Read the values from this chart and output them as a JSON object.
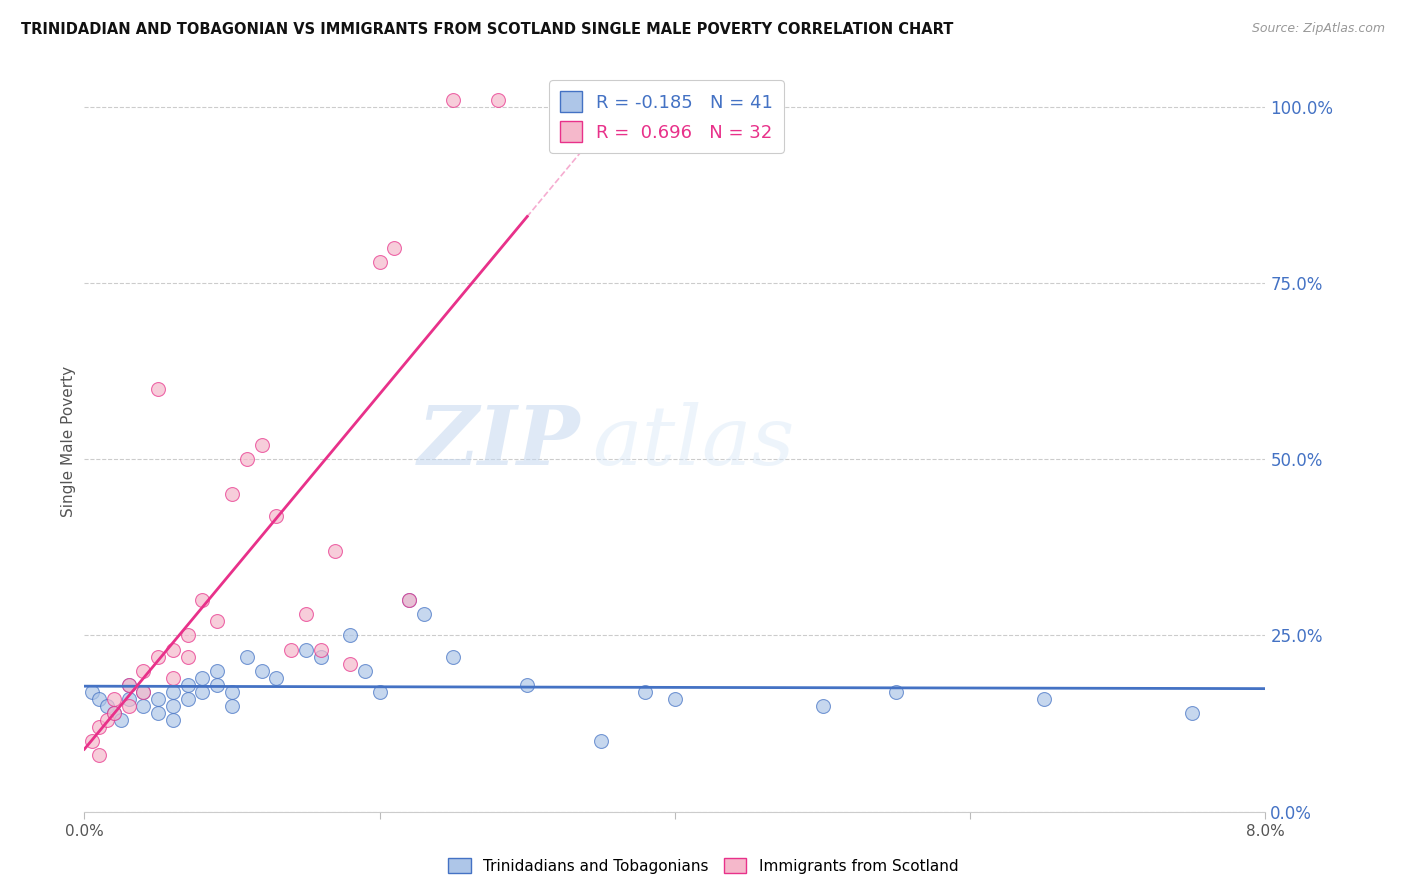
{
  "title": "TRINIDADIAN AND TOBAGONIAN VS IMMIGRANTS FROM SCOTLAND SINGLE MALE POVERTY CORRELATION CHART",
  "source": "Source: ZipAtlas.com",
  "ylabel": "Single Male Poverty",
  "right_yticks": [
    0.0,
    0.25,
    0.5,
    0.75,
    1.0
  ],
  "right_yticklabels": [
    "0.0%",
    "25.0%",
    "50.0%",
    "75.0%",
    "100.0%"
  ],
  "blue_R": -0.185,
  "blue_N": 41,
  "pink_R": 0.696,
  "pink_N": 32,
  "blue_label": "Trinidadians and Tobagonians",
  "pink_label": "Immigrants from Scotland",
  "blue_color": "#aec6e8",
  "pink_color": "#f5b8cb",
  "blue_line_color": "#4472c4",
  "pink_line_color": "#e8318a",
  "watermark_zip": "ZIP",
  "watermark_atlas": "atlas",
  "xlim": [
    0.0,
    0.08
  ],
  "ylim": [
    0.0,
    1.05
  ],
  "blue_x": [
    0.0005,
    0.001,
    0.0015,
    0.002,
    0.0025,
    0.003,
    0.003,
    0.004,
    0.004,
    0.005,
    0.005,
    0.006,
    0.006,
    0.006,
    0.007,
    0.007,
    0.008,
    0.008,
    0.009,
    0.009,
    0.01,
    0.01,
    0.011,
    0.012,
    0.013,
    0.015,
    0.016,
    0.018,
    0.019,
    0.02,
    0.022,
    0.023,
    0.025,
    0.03,
    0.035,
    0.038,
    0.04,
    0.05,
    0.055,
    0.065,
    0.075
  ],
  "blue_y": [
    0.17,
    0.16,
    0.15,
    0.14,
    0.13,
    0.18,
    0.16,
    0.17,
    0.15,
    0.16,
    0.14,
    0.17,
    0.15,
    0.13,
    0.18,
    0.16,
    0.19,
    0.17,
    0.2,
    0.18,
    0.17,
    0.15,
    0.22,
    0.2,
    0.19,
    0.23,
    0.22,
    0.25,
    0.2,
    0.17,
    0.3,
    0.28,
    0.22,
    0.18,
    0.1,
    0.17,
    0.16,
    0.15,
    0.17,
    0.16,
    0.14
  ],
  "pink_x": [
    0.0005,
    0.001,
    0.001,
    0.0015,
    0.002,
    0.002,
    0.003,
    0.003,
    0.004,
    0.004,
    0.005,
    0.005,
    0.006,
    0.006,
    0.007,
    0.007,
    0.008,
    0.009,
    0.01,
    0.011,
    0.012,
    0.013,
    0.014,
    0.015,
    0.016,
    0.017,
    0.018,
    0.02,
    0.021,
    0.022,
    0.025,
    0.028
  ],
  "pink_y": [
    0.1,
    0.12,
    0.08,
    0.13,
    0.16,
    0.14,
    0.18,
    0.15,
    0.2,
    0.17,
    0.6,
    0.22,
    0.23,
    0.19,
    0.25,
    0.22,
    0.3,
    0.27,
    0.45,
    0.5,
    0.52,
    0.42,
    0.23,
    0.28,
    0.23,
    0.37,
    0.21,
    0.78,
    0.8,
    0.3,
    1.01,
    1.01
  ]
}
